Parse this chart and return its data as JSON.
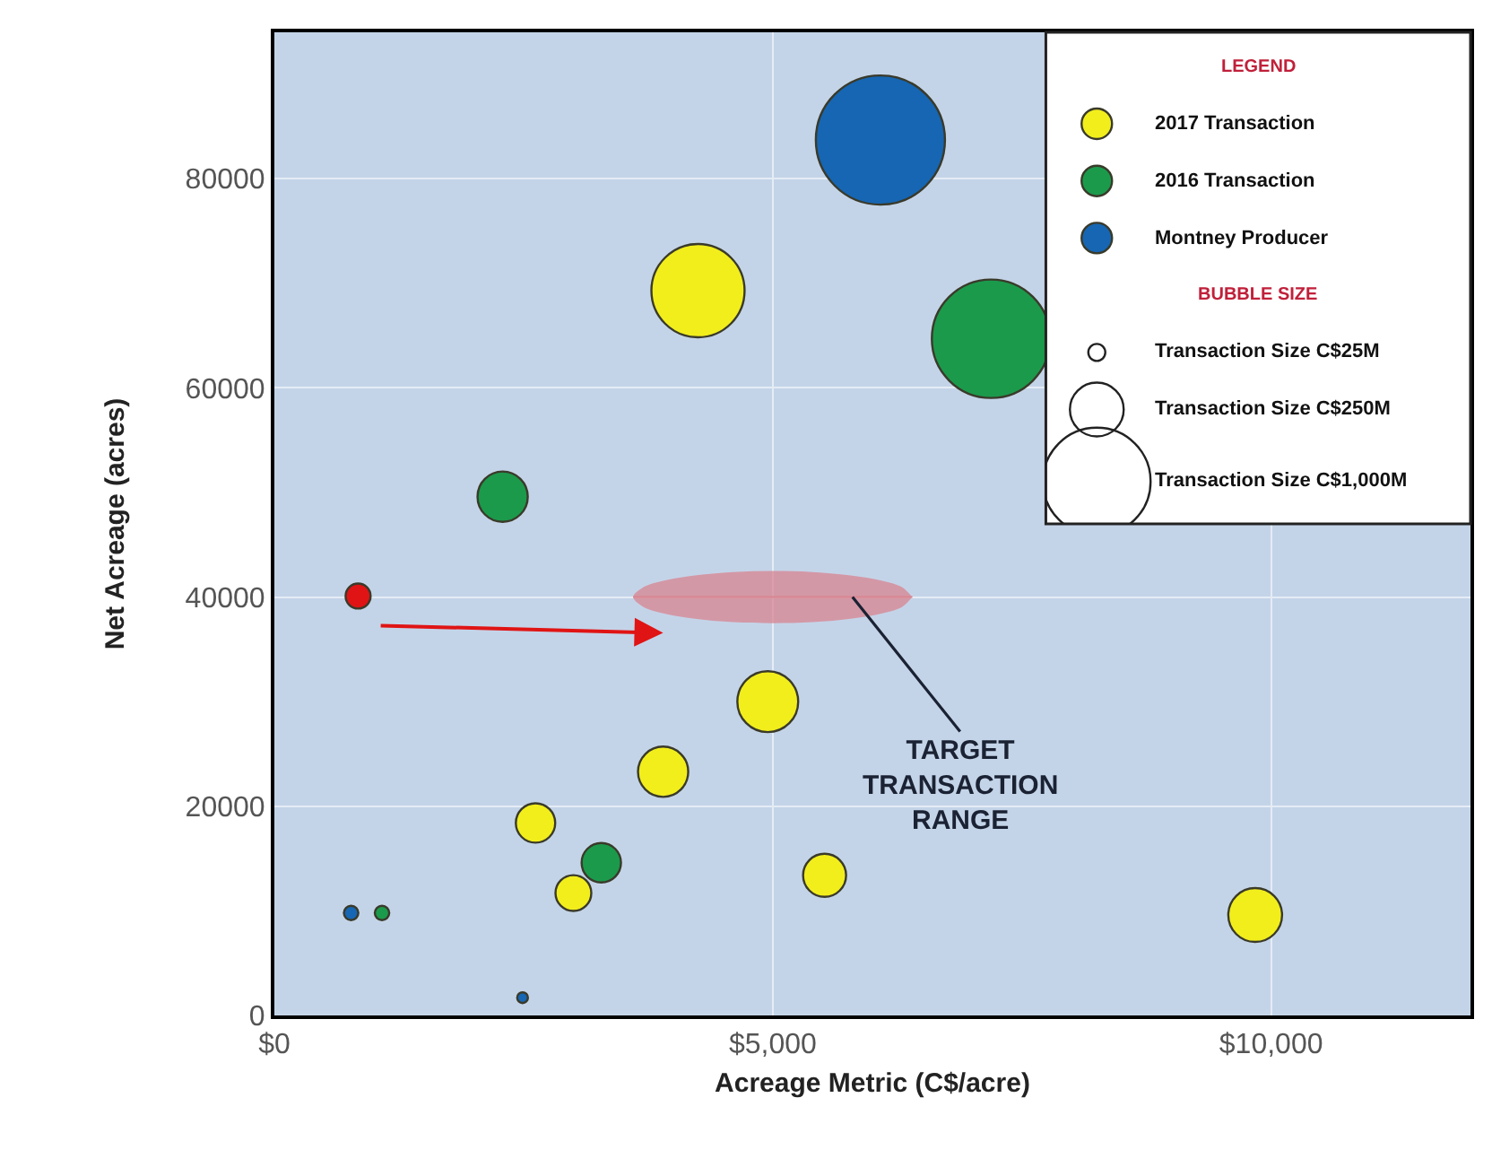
{
  "chart_data": {
    "type": "bubble",
    "xlabel": "Acreage Metric (C$/acre)",
    "ylabel": "Net Acreage (acres)",
    "legend_title": "LEGEND",
    "xlim": [
      0,
      12000
    ],
    "xticks": [
      {
        "value": 0,
        "label": "$0"
      },
      {
        "value": 5000,
        "label": "$5,000"
      },
      {
        "value": 10000,
        "label": "$10,000"
      }
    ],
    "ylim": [
      0,
      94000
    ],
    "yticks": [
      0,
      20000,
      40000,
      60000,
      80000
    ],
    "grid": true,
    "legend": "top right",
    "size_legend": [
      {
        "value": 25,
        "label": "Transaction Size C$25M"
      },
      {
        "value": 250,
        "label": "Transaction Size C$250M"
      },
      {
        "value": 1000,
        "label": "Transaction Size C$1,000M"
      }
    ],
    "series": [
      {
        "name": "2017 Transaction",
        "color": "#f2ee1c",
        "x": [
          4250,
          4950,
          3900,
          2620,
          3000,
          5520,
          9840
        ],
        "values": [
          69300,
          30000,
          23300,
          18400,
          11700,
          13400,
          9600
        ],
        "sizes": [
          750,
          320,
          218,
          134,
          111,
          160,
          250
        ]
      },
      {
        "name": "2016 Transaction",
        "color": "#1b9a4c",
        "x": [
          7190,
          2290,
          3280,
          1080
        ],
        "values": [
          64700,
          49600,
          14600,
          9800
        ],
        "sizes": [
          1210,
          218,
          134,
          18
        ]
      },
      {
        "name": "Montney Producer",
        "color": "#1666b3",
        "x": [
          6080,
          770,
          2490
        ],
        "values": [
          83700,
          9800,
          1700
        ],
        "sizes": [
          1440,
          18,
          10
        ]
      },
      {
        "color": "#e01414",
        "x": [
          840
        ],
        "values": [
          40100
        ],
        "sizes": [
          54
        ]
      },
      {
        "type": "line",
        "color": "#d98591",
        "x": [
          3600,
          3700,
          3900,
          4200,
          4600,
          5000,
          5400,
          5800,
          6100,
          6300,
          6400
        ],
        "values": [
          40000,
          40000,
          40000,
          40000,
          40000,
          40000,
          40000,
          40000,
          40000,
          40000,
          40000
        ],
        "lower": [
          40000,
          39070,
          38450,
          37950,
          37600,
          37500,
          37600,
          37950,
          38450,
          39070,
          40000
        ],
        "upper": [
          40000,
          40930,
          41550,
          42050,
          42400,
          42500,
          42400,
          42050,
          41550,
          40930,
          40000
        ]
      }
    ],
    "annotations": [
      {
        "text": "TARGET TRANSACTION RANGE",
        "x": 5800,
        "y": 40000
      },
      "BUBBLE SIZE"
    ]
  }
}
